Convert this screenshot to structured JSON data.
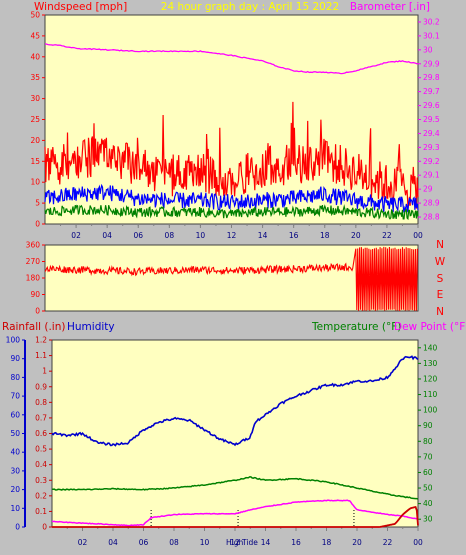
{
  "header": {
    "wind_label": "Windspeed [mph]",
    "title": "24 hour graph day : April 15 2022",
    "baro_label": "Barometer [.in]"
  },
  "lower_header": {
    "rain_label": "Rainfall (.in)",
    "humidity_label": "Humidity",
    "temp_label": "Temperature (°F)",
    "dew_label": "Dew Point (°F)"
  },
  "direction_labels": [
    "N",
    "W",
    "S",
    "E",
    "N"
  ],
  "tide_labels": [
    "High",
    "Tide"
  ],
  "x_ticks": [
    "02",
    "04",
    "06",
    "08",
    "10",
    "12",
    "14",
    "16",
    "18",
    "20",
    "22",
    "00"
  ],
  "colors": {
    "plot_bg": "#ffffc0",
    "wind_gust": "#ff0000",
    "wind_avg": "#0000ff",
    "wind_low": "#008000",
    "barometer": "#ff00ff",
    "direction": "#ff0000",
    "humidity": "#0000cc",
    "temperature": "#008000",
    "dew_point": "#ff00ff",
    "rainfall": "#cc0000"
  },
  "chart_data": [
    {
      "type": "line",
      "name": "wind-barometer",
      "x_ticks": [
        "02",
        "04",
        "06",
        "08",
        "10",
        "12",
        "14",
        "16",
        "18",
        "20",
        "22",
        "00"
      ],
      "y_left": {
        "ticks": [
          0,
          5,
          10,
          15,
          20,
          25,
          30,
          35,
          40,
          45,
          50
        ],
        "range": [
          0,
          50
        ]
      },
      "y_right": {
        "ticks": [
          28.8,
          28.9,
          29.0,
          29.1,
          29.2,
          29.3,
          29.4,
          29.5,
          29.6,
          29.7,
          29.8,
          29.9,
          30.0,
          30.1,
          30.2
        ],
        "range": [
          28.75,
          30.25
        ]
      },
      "series": [
        {
          "name": "Windspeed gust",
          "axis": "left",
          "hours": [
            0,
            2,
            4,
            6,
            8,
            10,
            12,
            14,
            16,
            18,
            20,
            22,
            24
          ],
          "values": [
            12,
            14,
            15,
            12,
            10,
            11,
            9,
            12,
            13,
            14,
            11,
            8,
            7
          ],
          "jitter": 5
        },
        {
          "name": "Windspeed average",
          "axis": "left",
          "hours": [
            0,
            2,
            4,
            6,
            8,
            10,
            12,
            14,
            16,
            18,
            20,
            22,
            24
          ],
          "values": [
            5.5,
            6.5,
            7,
            5.5,
            5,
            5,
            4.5,
            5,
            5.5,
            6.5,
            5,
            4,
            4
          ],
          "jitter": 2
        },
        {
          "name": "Windspeed low",
          "axis": "left",
          "hours": [
            0,
            2,
            4,
            6,
            8,
            10,
            12,
            14,
            16,
            18,
            20,
            22,
            24
          ],
          "values": [
            2.5,
            3,
            3,
            2.5,
            2.5,
            2.5,
            2,
            2.5,
            2.5,
            3,
            2.5,
            2,
            2
          ],
          "jitter": 1.2
        },
        {
          "name": "Barometer",
          "axis": "right",
          "hours": [
            0,
            1,
            2,
            4,
            6,
            8,
            10,
            12,
            14,
            15,
            16,
            17,
            18,
            19,
            20,
            21,
            22,
            23,
            24
          ],
          "values": [
            30.04,
            30.03,
            30.01,
            30.0,
            29.99,
            29.99,
            29.99,
            29.96,
            29.92,
            29.88,
            29.85,
            29.84,
            29.84,
            29.83,
            29.85,
            29.88,
            29.91,
            29.92,
            29.9
          ]
        }
      ]
    },
    {
      "type": "line",
      "name": "wind-direction",
      "x_ticks": [
        "02",
        "04",
        "06",
        "08",
        "10",
        "12",
        "14",
        "16",
        "18",
        "20",
        "22",
        "00"
      ],
      "y_left": {
        "ticks": [
          0,
          90,
          180,
          270,
          360
        ],
        "range": [
          0,
          360
        ]
      },
      "series": [
        {
          "name": "Wind direction",
          "hours": [
            0,
            2,
            4,
            6,
            8,
            10,
            12,
            14,
            16,
            18,
            19.8
          ],
          "values": [
            230,
            225,
            220,
            215,
            220,
            225,
            220,
            225,
            230,
            235,
            240
          ],
          "jitter": 20,
          "variable_from_hour": 20,
          "variable_range": [
            0,
            350
          ]
        }
      ]
    },
    {
      "type": "line",
      "name": "humidity-temperature-rain",
      "x_ticks": [
        "02",
        "04",
        "06",
        "08",
        "10",
        "12",
        "14",
        "16",
        "18",
        "20",
        "22",
        "00"
      ],
      "y_humidity": {
        "ticks": [
          0,
          10,
          20,
          30,
          40,
          50,
          60,
          70,
          80,
          90,
          100
        ],
        "range": [
          0,
          100
        ]
      },
      "y_rain": {
        "ticks": [
          0,
          0.1,
          0.2,
          0.3,
          0.4,
          0.5,
          0.6,
          0.7,
          0.8,
          0.9,
          1,
          1.1,
          1.2
        ],
        "range": [
          0,
          1.2
        ]
      },
      "y_temp": {
        "ticks": [
          30,
          40,
          50,
          60,
          70,
          80,
          90,
          100,
          110,
          120,
          130,
          140
        ],
        "range": [
          25,
          145
        ]
      },
      "tide_markers_hours": [
        6.5,
        12.2,
        19.8
      ],
      "series": [
        {
          "name": "Humidity",
          "axis": "humidity",
          "hours": [
            0,
            1,
            2,
            3,
            4,
            5,
            6,
            7,
            8,
            9,
            10,
            11,
            12,
            13,
            13.3,
            14,
            15,
            16,
            17,
            18,
            19,
            20,
            21,
            22,
            23,
            23.4,
            24
          ],
          "values": [
            50,
            49,
            50,
            45,
            44,
            45,
            52,
            56,
            58,
            57,
            52,
            47,
            44,
            48,
            56,
            60,
            66,
            70,
            73,
            76,
            76,
            78,
            78,
            80,
            90,
            91,
            90
          ]
        },
        {
          "name": "Temperature",
          "axis": "temp",
          "hours": [
            0,
            2,
            4,
            6,
            8,
            10,
            12,
            13,
            14,
            16,
            18,
            20,
            22,
            24
          ],
          "values": [
            49,
            49,
            49.5,
            49,
            50,
            52,
            55,
            57,
            55,
            56,
            54,
            50,
            46,
            43
          ]
        },
        {
          "name": "Dew Point",
          "axis": "temp",
          "hours": [
            0,
            1,
            2,
            3,
            4,
            5,
            6,
            6.5,
            8,
            10,
            12,
            13,
            14,
            16,
            18,
            19.5,
            20,
            22,
            23,
            24
          ],
          "values": [
            28.5,
            28,
            27.5,
            27,
            26.5,
            26,
            26.5,
            31,
            33,
            33.5,
            33.5,
            36,
            38,
            41,
            42,
            42,
            36,
            33,
            32,
            30
          ]
        },
        {
          "name": "Rainfall",
          "axis": "rain",
          "hours": [
            0,
            21.5,
            22.5,
            23,
            23.5,
            23.9,
            24
          ],
          "values": [
            0,
            0,
            0.02,
            0.08,
            0.12,
            0.13,
            0.01
          ]
        }
      ]
    }
  ]
}
